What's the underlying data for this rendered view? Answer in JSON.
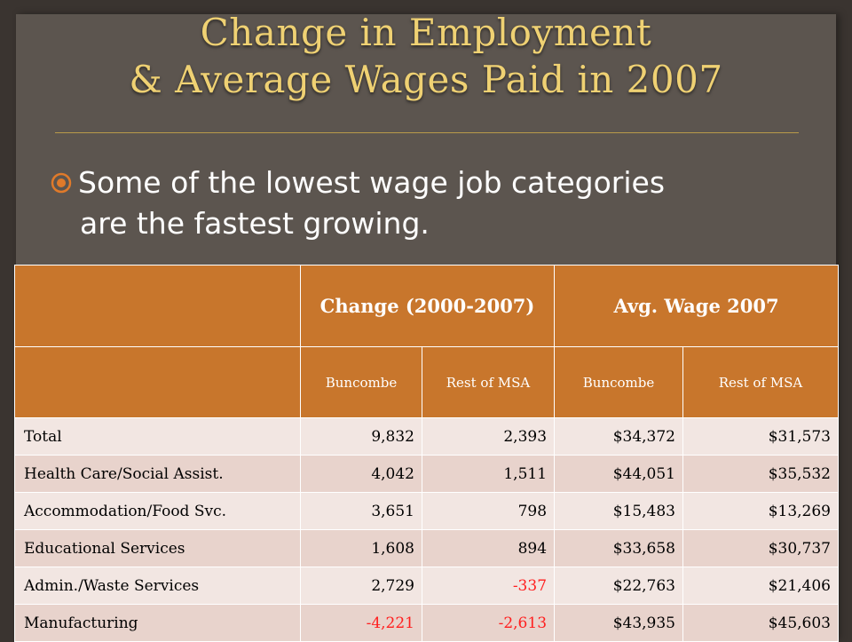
{
  "slide": {
    "title_line1": "Change in Employment",
    "title_line2": "& Average Wages Paid in 2007",
    "bullet_line1": "Some of the lowest wage job categories",
    "bullet_line2": "are the fastest growing.",
    "bullet_icon": "circled-dot-bullet-icon"
  },
  "table": {
    "group_headers": [
      "",
      "Change (2000-2007)",
      "Avg. Wage 2007"
    ],
    "sub_headers": [
      "",
      "Buncombe",
      "Rest of MSA",
      "Buncombe",
      "Rest of MSA"
    ],
    "rows": [
      {
        "label": "Total",
        "c_bun": "9,832",
        "c_rest": "2,393",
        "w_bun": "$34,372",
        "w_rest": "$31,573"
      },
      {
        "label": "Health Care/Social Assist.",
        "c_bun": "4,042",
        "c_rest": "1,511",
        "w_bun": "$44,051",
        "w_rest": "$35,532"
      },
      {
        "label": "Accommodation/Food Svc.",
        "c_bun": "3,651",
        "c_rest": "798",
        "w_bun": "$15,483",
        "w_rest": "$13,269"
      },
      {
        "label": "Educational Services",
        "c_bun": "1,608",
        "c_rest": "894",
        "w_bun": "$33,658",
        "w_rest": "$30,737"
      },
      {
        "label": "Admin./Waste Services",
        "c_bun": "2,729",
        "c_rest": "-337",
        "w_bun": "$22,763",
        "w_rest": "$21,406"
      },
      {
        "label": "Manufacturing",
        "c_bun": "-4,221",
        "c_rest": "-2,613",
        "w_bun": "$43,935",
        "w_rest": "$45,603"
      }
    ]
  },
  "colors": {
    "title": "#efd173",
    "header": "#c8762c",
    "negative": "#ff1f1f"
  }
}
